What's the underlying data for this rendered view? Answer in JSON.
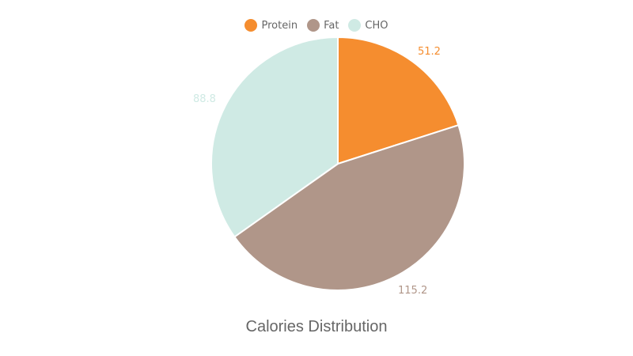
{
  "chart_data": {
    "type": "pie",
    "title": "Calories Distribution",
    "categories": [
      "Protein",
      "Fat",
      "CHO"
    ],
    "values": [
      51.2,
      115.2,
      88.8
    ],
    "colors": [
      "#f58d2f",
      "#b09689",
      "#cfeae4"
    ],
    "legend_position": "top",
    "data_labels": [
      "51.2",
      "115.2",
      "88.8"
    ]
  },
  "legend": [
    {
      "label": "Protein",
      "color": "#f58d2f"
    },
    {
      "label": "Fat",
      "color": "#b09689"
    },
    {
      "label": "CHO",
      "color": "#cfeae4"
    }
  ],
  "labels": {
    "protein": "51.2",
    "fat": "115.2",
    "cho": "88.8"
  },
  "title": "Calories Distribution"
}
